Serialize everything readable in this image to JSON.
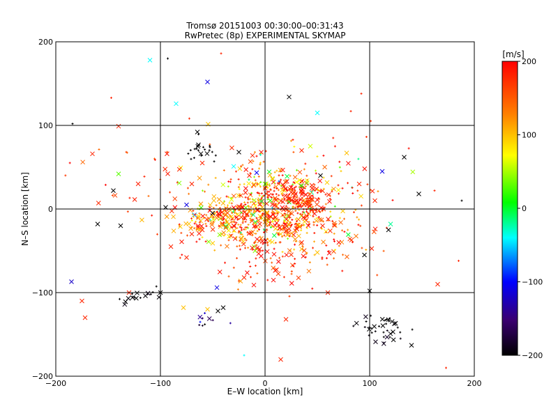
{
  "chart_data": {
    "type": "scatter",
    "title": "Tromsø 20151003 00:30:00–00:31:43",
    "subtitle": "RwPretec (8p) EXPERIMENTAL SKYMAP",
    "xlabel": "E–W location [km]",
    "ylabel": "N–S location [km]",
    "xlim": [
      -200,
      200
    ],
    "ylim": [
      -200,
      200
    ],
    "xticks": [
      -200,
      -100,
      0,
      100,
      200
    ],
    "yticks": [
      -200,
      -100,
      0,
      100,
      200
    ],
    "xtick_labels": [
      "−200",
      "−100",
      "0",
      "100",
      "200"
    ],
    "ytick_labels": [
      "−200",
      "−100",
      "0",
      "100",
      "200"
    ],
    "grid": true,
    "markers": [
      "x",
      "+"
    ],
    "colorbar": {
      "label": "[m/s]",
      "range": [
        -200,
        200
      ],
      "ticks": [
        200,
        100,
        0,
        -100,
        -200
      ],
      "tick_labels": [
        "200",
        "100",
        "0",
        "−100",
        "−200"
      ],
      "colormap": [
        "#000000",
        "#3a0070",
        "#0000ff",
        "#00ffff",
        "#00ff00",
        "#ffff00",
        "#ff8000",
        "#ff0000"
      ]
    },
    "points": [
      {
        "x": -110,
        "y": 178,
        "v": -40,
        "m": "x"
      },
      {
        "x": -55,
        "y": 152,
        "v": -110,
        "m": "x"
      },
      {
        "x": 23,
        "y": 134,
        "v": -200,
        "m": "x"
      },
      {
        "x": 50,
        "y": 115,
        "v": -40,
        "m": "x"
      },
      {
        "x": -85,
        "y": 126,
        "v": -40,
        "m": "x"
      },
      {
        "x": -140,
        "y": 99,
        "v": 180,
        "m": "x"
      },
      {
        "x": -165,
        "y": 66,
        "v": 180,
        "m": "x"
      },
      {
        "x": -145,
        "y": 22,
        "v": -200,
        "m": "x"
      },
      {
        "x": -160,
        "y": -18,
        "v": -200,
        "m": "x"
      },
      {
        "x": -138,
        "y": -20,
        "v": -200,
        "m": "x"
      },
      {
        "x": -140,
        "y": 42,
        "v": 30,
        "m": "x"
      },
      {
        "x": -185,
        "y": -87,
        "v": -120,
        "m": "x"
      },
      {
        "x": -175,
        "y": -110,
        "v": 180,
        "m": "x"
      },
      {
        "x": -172,
        "y": -130,
        "v": 180,
        "m": "x"
      },
      {
        "x": -130,
        "y": -100,
        "v": 180,
        "m": "x"
      },
      {
        "x": -100,
        "y": -100,
        "v": -200,
        "m": "x"
      },
      {
        "x": -78,
        "y": -118,
        "v": 100,
        "m": "x"
      },
      {
        "x": -55,
        "y": -120,
        "v": 100,
        "m": "x"
      },
      {
        "x": -45,
        "y": -122,
        "v": -200,
        "m": "x"
      },
      {
        "x": -40,
        "y": -118,
        "v": -200,
        "m": "x"
      },
      {
        "x": -46,
        "y": -94,
        "v": -110,
        "m": "x"
      },
      {
        "x": 20,
        "y": -132,
        "v": 180,
        "m": "x"
      },
      {
        "x": 15,
        "y": -180,
        "v": 180,
        "m": "x"
      },
      {
        "x": 100,
        "y": -98,
        "v": -200,
        "m": "x"
      },
      {
        "x": 140,
        "y": -163,
        "v": -200,
        "m": "x"
      },
      {
        "x": 112,
        "y": 45,
        "v": -110,
        "m": "x"
      },
      {
        "x": 133,
        "y": 62,
        "v": -200,
        "m": "x"
      },
      {
        "x": 147,
        "y": 18,
        "v": -200,
        "m": "x"
      },
      {
        "x": 120,
        "y": -18,
        "v": -20,
        "m": "x"
      },
      {
        "x": 118,
        "y": -25,
        "v": -200,
        "m": "x"
      },
      {
        "x": 95,
        "y": -55,
        "v": -200,
        "m": "x"
      },
      {
        "x": 105,
        "y": 10,
        "v": 180,
        "m": "x"
      },
      {
        "x": 90,
        "y": 30,
        "v": 180,
        "m": "x"
      },
      {
        "x": 78,
        "y": 67,
        "v": 100,
        "m": "x"
      },
      {
        "x": 53,
        "y": 40,
        "v": -200,
        "m": "x"
      },
      {
        "x": 35,
        "y": 70,
        "v": 180,
        "m": "x"
      },
      {
        "x": -25,
        "y": 68,
        "v": -200,
        "m": "x"
      },
      {
        "x": -12,
        "y": 64,
        "v": 180,
        "m": "x"
      },
      {
        "x": -30,
        "y": 51,
        "v": -40,
        "m": "x"
      },
      {
        "x": -60,
        "y": 55,
        "v": 180,
        "m": "x"
      },
      {
        "x": -70,
        "y": 30,
        "v": 180,
        "m": "x"
      },
      {
        "x": -82,
        "y": 31,
        "v": 40,
        "m": "x"
      },
      {
        "x": -95,
        "y": 2,
        "v": -200,
        "m": "x"
      },
      {
        "x": -75,
        "y": 5,
        "v": -110,
        "m": "x"
      },
      {
        "x": -90,
        "y": -45,
        "v": 180,
        "m": "x"
      },
      {
        "x": -75,
        "y": -58,
        "v": 180,
        "m": "x"
      },
      {
        "x": -20,
        "y": -82,
        "v": 180,
        "m": "x"
      },
      {
        "x": 50,
        "y": -52,
        "v": 100,
        "m": "x"
      },
      {
        "x": 60,
        "y": -100,
        "v": 180,
        "m": "x"
      },
      {
        "x": 165,
        "y": -90,
        "v": 180,
        "m": "x"
      },
      {
        "x": 2,
        "y": -4,
        "v": 100,
        "m": "x"
      },
      {
        "x": 10,
        "y": -10,
        "v": 180,
        "m": "x"
      },
      {
        "x": 20,
        "y": 0,
        "v": 180,
        "m": "x"
      },
      {
        "x": 30,
        "y": 10,
        "v": 180,
        "m": "x"
      },
      {
        "x": 5,
        "y": 10,
        "v": 20,
        "m": "x"
      },
      {
        "x": -5,
        "y": -18,
        "v": 180,
        "m": "x"
      },
      {
        "x": 25,
        "y": 20,
        "v": 180,
        "m": "x"
      },
      {
        "x": 40,
        "y": 5,
        "v": 180,
        "m": "x"
      },
      {
        "x": -40,
        "y": -10,
        "v": 180,
        "m": "x"
      },
      {
        "x": -50,
        "y": -5,
        "v": -200,
        "m": "x"
      },
      {
        "x": -30,
        "y": -20,
        "v": 180,
        "m": "x"
      },
      {
        "x": -60,
        "y": -25,
        "v": 180,
        "m": "x"
      },
      {
        "x": -20,
        "y": -10,
        "v": 180,
        "m": "x"
      },
      {
        "x": 15,
        "y": -30,
        "v": 100,
        "m": "x"
      },
      {
        "x": 35,
        "y": -40,
        "v": 180,
        "m": "x"
      },
      {
        "x": -70,
        "y": -30,
        "v": 180,
        "m": "x"
      },
      {
        "x": -15,
        "y": 40,
        "v": 180,
        "m": "x"
      },
      {
        "x": 45,
        "y": 25,
        "v": 180,
        "m": "x"
      },
      {
        "x": 55,
        "y": -20,
        "v": 180,
        "m": "x"
      },
      {
        "x": 0,
        "y": 30,
        "v": 30,
        "m": "x"
      },
      {
        "x": -184,
        "y": 102,
        "v": -200,
        "m": "+"
      },
      {
        "x": -93,
        "y": 180,
        "v": -200,
        "m": "+"
      },
      {
        "x": -42,
        "y": 186,
        "v": 180,
        "m": "+"
      },
      {
        "x": 92,
        "y": 138,
        "v": 180,
        "m": "+"
      },
      {
        "x": 82,
        "y": 117,
        "v": 180,
        "m": "+"
      },
      {
        "x": -147,
        "y": 133,
        "v": 180,
        "m": "+"
      },
      {
        "x": -20,
        "y": -175,
        "v": -40,
        "m": "+"
      },
      {
        "x": 188,
        "y": 10,
        "v": -200,
        "m": "+"
      },
      {
        "x": 185,
        "y": -62,
        "v": 180,
        "m": "+"
      },
      {
        "x": 173,
        "y": -190,
        "v": 180,
        "m": "+"
      },
      {
        "x": 162,
        "y": 22,
        "v": 180,
        "m": "+"
      }
    ],
    "clusters": [
      {
        "cx": 5,
        "cy": -8,
        "sx": 32,
        "sy": 20,
        "n": 420,
        "vmean": 140,
        "vspread": 90
      },
      {
        "cx": 28,
        "cy": 14,
        "sx": 16,
        "sy": 12,
        "n": 160,
        "vmean": 180,
        "vspread": 40
      },
      {
        "cx": -35,
        "cy": -15,
        "sx": 22,
        "sy": 12,
        "n": 160,
        "vmean": 140,
        "vspread": 120
      },
      {
        "cx": 5,
        "cy": 30,
        "sx": 40,
        "sy": 25,
        "n": 120,
        "vmean": 120,
        "vspread": 140
      },
      {
        "cx": 40,
        "cy": -40,
        "sx": 35,
        "sy": 20,
        "n": 90,
        "vmean": 170,
        "vspread": 60
      },
      {
        "cx": -60,
        "cy": 72,
        "sx": 10,
        "sy": 8,
        "n": 22,
        "vmean": -200,
        "vspread": 0
      },
      {
        "cx": 115,
        "cy": -142,
        "sx": 12,
        "sy": 10,
        "n": 40,
        "vmean": -200,
        "vspread": 10
      },
      {
        "cx": -120,
        "cy": -103,
        "sx": 12,
        "sy": 6,
        "n": 18,
        "vmean": -200,
        "vspread": 20
      },
      {
        "cx": -55,
        "cy": -130,
        "sx": 8,
        "sy": 8,
        "n": 10,
        "vmean": -130,
        "vspread": 60
      },
      {
        "cx": 0,
        "cy": -60,
        "sx": 30,
        "sy": 25,
        "n": 60,
        "vmean": 170,
        "vspread": 60
      },
      {
        "cx": -120,
        "cy": 40,
        "sx": 30,
        "sy": 25,
        "n": 30,
        "vmean": 180,
        "vspread": 40
      },
      {
        "cx": 90,
        "cy": 20,
        "sx": 25,
        "sy": 35,
        "n": 25,
        "vmean": 180,
        "vspread": 30
      }
    ]
  }
}
